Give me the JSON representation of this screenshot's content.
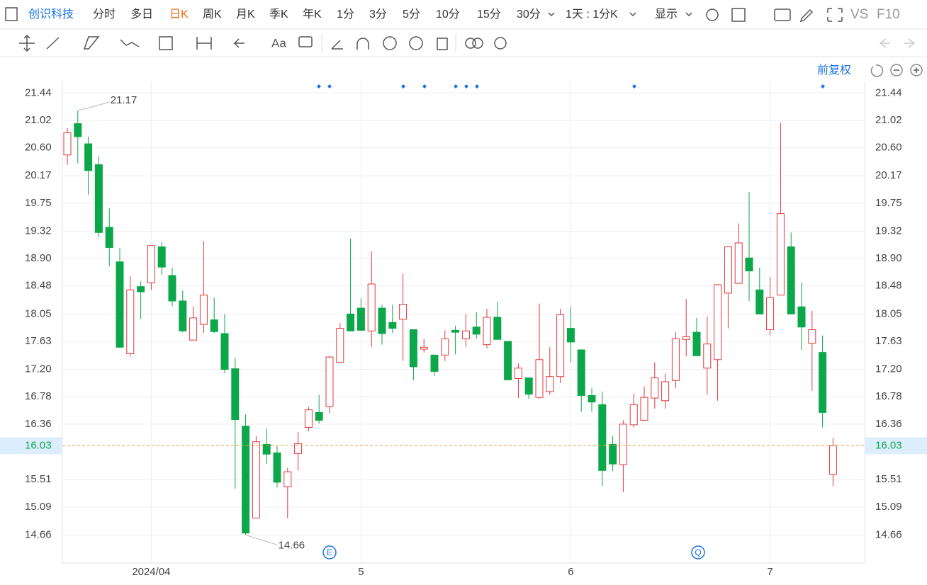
{
  "toolbar": {
    "stock": "创识科技",
    "periods": [
      "分时",
      "多日",
      "日K",
      "周K",
      "月K",
      "季K",
      "年K",
      "1分",
      "3分",
      "5分",
      "10分",
      "15分",
      "30分"
    ],
    "combo": "1天 : 1分K",
    "display": "显示",
    "vs": "VS",
    "f10": "F10"
  },
  "chart_data": {
    "type": "candlestick",
    "adjust": "前复权",
    "up_color": "#e0393e",
    "down_color": "#0ca74a",
    "categories": [
      null,
      null,
      null,
      null,
      null,
      null,
      null,
      null,
      "2024/04",
      null,
      null,
      null,
      null,
      null,
      null,
      null,
      null,
      null,
      null,
      null,
      null,
      null,
      null,
      null,
      null,
      null,
      null,
      null,
      "5",
      null,
      null,
      null,
      null,
      null,
      null,
      null,
      null,
      null,
      null,
      null,
      null,
      null,
      null,
      null,
      null,
      null,
      null,
      null,
      "6",
      null,
      null,
      null,
      null,
      null,
      null,
      null,
      null,
      null,
      null,
      null,
      null,
      null,
      null,
      null,
      null,
      null,
      null,
      "7",
      null,
      null,
      null,
      null,
      null,
      null
    ],
    "open": [
      20.49,
      20.97,
      20.66,
      20.34,
      19.38,
      18.85,
      17.44,
      18.47,
      18.53,
      19.08,
      18.64,
      18.25,
      17.65,
      17.89,
      17.96,
      17.75,
      17.21,
      16.33,
      14.92,
      16.05,
      15.92,
      15.4,
      15.91,
      16.31,
      16.54,
      16.63,
      17.31,
      18.05,
      18.14,
      17.79,
      18.14,
      17.92,
      17.97,
      17.81,
      17.51,
      17.42,
      17.42,
      17.8,
      17.67,
      17.85,
      17.58,
      18.0,
      17.63,
      17.06,
      17.07,
      16.77,
      16.86,
      17.09,
      17.83,
      17.5,
      16.8,
      16.66,
      16.05,
      15.74,
      16.35,
      16.42,
      16.76,
      16.72,
      17.03,
      17.66,
      17.77,
      17.22,
      17.35,
      18.37,
      18.52,
      18.91,
      18.42,
      17.81,
      18.34,
      19.08,
      18.16,
      17.6,
      17.46,
      15.59
    ],
    "close": [
      20.83,
      20.77,
      20.25,
      19.3,
      19.07,
      17.54,
      18.42,
      18.39,
      19.1,
      18.77,
      18.25,
      17.79,
      17.99,
      18.34,
      17.78,
      17.2,
      16.43,
      14.69,
      16.09,
      15.9,
      15.47,
      15.63,
      16.06,
      16.58,
      16.42,
      17.39,
      17.83,
      17.79,
      17.8,
      18.51,
      17.75,
      17.83,
      18.2,
      17.24,
      17.54,
      17.17,
      17.67,
      17.77,
      17.79,
      17.74,
      18.0,
      17.66,
      17.04,
      17.22,
      16.82,
      17.35,
      17.09,
      18.04,
      17.62,
      16.8,
      16.7,
      15.65,
      15.75,
      16.36,
      16.66,
      16.77,
      17.07,
      17.01,
      17.67,
      17.7,
      17.41,
      17.59,
      18.5,
      19.08,
      19.14,
      18.71,
      18.05,
      18.3,
      19.59,
      18.05,
      17.85,
      17.81,
      16.54,
      16.03
    ],
    "high": [
      20.9,
      21.17,
      20.77,
      20.47,
      19.67,
      19.06,
      18.63,
      18.55,
      19.1,
      19.15,
      18.76,
      18.41,
      18.17,
      19.17,
      18.3,
      18.05,
      17.38,
      16.51,
      16.18,
      16.29,
      16.02,
      15.69,
      16.24,
      16.63,
      16.81,
      17.41,
      17.91,
      19.21,
      18.29,
      19.01,
      18.19,
      18.19,
      18.67,
      17.81,
      17.67,
      17.42,
      17.8,
      17.87,
      18.05,
      18.08,
      18.13,
      18.24,
      17.63,
      17.29,
      17.07,
      18.21,
      17.54,
      18.13,
      18.16,
      17.5,
      16.91,
      16.86,
      16.18,
      16.42,
      16.83,
      16.94,
      17.31,
      17.14,
      17.77,
      18.28,
      17.99,
      18.01,
      18.5,
      19.08,
      19.44,
      19.92,
      18.76,
      18.62,
      20.98,
      19.3,
      18.53,
      18.1,
      17.72,
      16.15
    ],
    "low": [
      20.34,
      20.36,
      19.88,
      19.23,
      18.78,
      17.54,
      17.4,
      17.97,
      18.42,
      18.65,
      18.17,
      17.77,
      17.65,
      17.76,
      17.76,
      17.14,
      15.37,
      14.66,
      14.92,
      15.75,
      15.39,
      14.92,
      15.65,
      16.25,
      16.37,
      16.53,
      17.31,
      17.79,
      17.8,
      17.54,
      17.58,
      17.76,
      17.33,
      17.03,
      17.46,
      17.1,
      17.33,
      17.43,
      17.54,
      17.67,
      17.52,
      17.66,
      17.04,
      16.76,
      16.75,
      16.75,
      16.81,
      16.99,
      17.31,
      16.55,
      16.55,
      15.41,
      15.64,
      15.32,
      16.31,
      16.42,
      16.6,
      16.6,
      16.91,
      17.4,
      17.41,
      16.81,
      16.72,
      17.83,
      18.52,
      18.25,
      18.05,
      17.72,
      18.34,
      18.05,
      17.5,
      16.87,
      16.31,
      15.41
    ],
    "high_annotation": 21.17,
    "low_annotation": 14.66,
    "last_price": 16.03,
    "events": [
      "E",
      "Q"
    ],
    "ylim": [
      14.23,
      21.78
    ],
    "yticks": [
      21.44,
      21.02,
      {
        "value": 20.6,
        "label": "20.60"
      },
      20.17,
      19.75,
      19.32,
      {
        "value": 18.9,
        "label": "18.90"
      },
      18.48,
      18.05,
      17.63,
      {
        "value": 17.2,
        "label": "17.20"
      },
      16.78,
      16.36,
      15.51,
      15.09,
      14.66
    ],
    "grid": true
  }
}
